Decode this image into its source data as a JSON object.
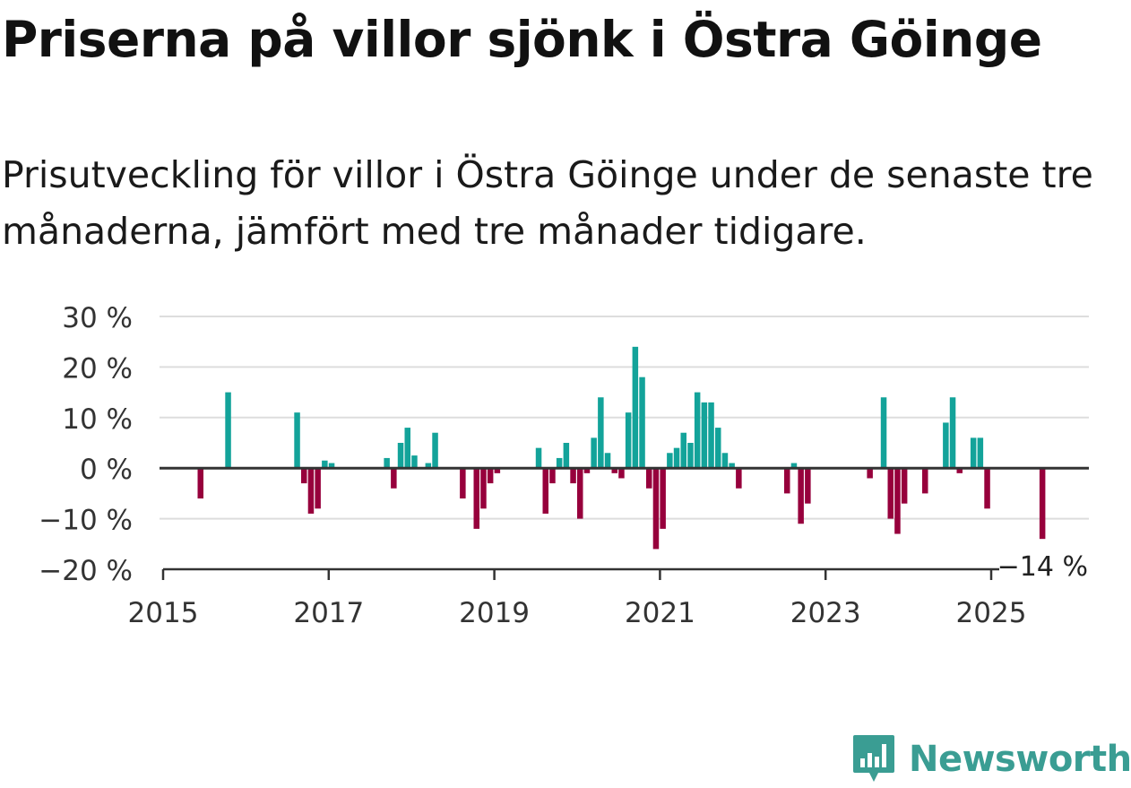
{
  "title": "Priserna på villor sjönk i Östra Göinge",
  "subtitle": "Prisutveckling för villor i Östra Göinge under de senaste tre månaderna, jämfört med tre månader tidigare.",
  "brand": "Newsworthy",
  "colors": {
    "positive": "#13a39a",
    "negative": "#97003c",
    "grid": "#dddddd",
    "axis": "#333333",
    "brand": "#3a9d93"
  },
  "chart_data": {
    "type": "bar",
    "x_unit": "month",
    "ylim": [
      -20,
      30
    ],
    "y_ticks": [
      30,
      20,
      10,
      0,
      -10,
      -20
    ],
    "y_tick_labels": [
      "30 %",
      "20 %",
      "10 %",
      "0 %",
      "−10 %",
      "−20 %"
    ],
    "x_ticks": [
      "2015",
      "2017",
      "2019",
      "2021",
      "2023",
      "2025"
    ],
    "grid": true,
    "last_value_label": "−14 %",
    "series": [
      {
        "values": [
          {
            "x": "2015-06",
            "y": -6
          },
          {
            "x": "2015-10",
            "y": 15
          },
          {
            "x": "2016-08",
            "y": 11
          },
          {
            "x": "2016-09",
            "y": -3
          },
          {
            "x": "2016-10",
            "y": -9
          },
          {
            "x": "2016-11",
            "y": -8
          },
          {
            "x": "2016-12",
            "y": 1.5
          },
          {
            "x": "2017-01",
            "y": 1
          },
          {
            "x": "2017-09",
            "y": 2
          },
          {
            "x": "2017-10",
            "y": -4
          },
          {
            "x": "2017-11",
            "y": 5
          },
          {
            "x": "2017-12",
            "y": 8
          },
          {
            "x": "2018-01",
            "y": 2.5
          },
          {
            "x": "2018-03",
            "y": 1
          },
          {
            "x": "2018-04",
            "y": 7
          },
          {
            "x": "2018-08",
            "y": -6
          },
          {
            "x": "2018-10",
            "y": -12
          },
          {
            "x": "2018-11",
            "y": -8
          },
          {
            "x": "2018-12",
            "y": -3
          },
          {
            "x": "2019-01",
            "y": -1
          },
          {
            "x": "2019-07",
            "y": 4
          },
          {
            "x": "2019-08",
            "y": -9
          },
          {
            "x": "2019-09",
            "y": -3
          },
          {
            "x": "2019-10",
            "y": 2
          },
          {
            "x": "2019-11",
            "y": 5
          },
          {
            "x": "2019-12",
            "y": -3
          },
          {
            "x": "2020-01",
            "y": -10
          },
          {
            "x": "2020-02",
            "y": -1
          },
          {
            "x": "2020-03",
            "y": 6
          },
          {
            "x": "2020-04",
            "y": 14
          },
          {
            "x": "2020-05",
            "y": 3
          },
          {
            "x": "2020-06",
            "y": -1
          },
          {
            "x": "2020-07",
            "y": -2
          },
          {
            "x": "2020-08",
            "y": 11
          },
          {
            "x": "2020-09",
            "y": 24
          },
          {
            "x": "2020-10",
            "y": 18
          },
          {
            "x": "2020-11",
            "y": -4
          },
          {
            "x": "2020-12",
            "y": -16
          },
          {
            "x": "2021-01",
            "y": -12
          },
          {
            "x": "2021-02",
            "y": 3
          },
          {
            "x": "2021-03",
            "y": 4
          },
          {
            "x": "2021-04",
            "y": 7
          },
          {
            "x": "2021-05",
            "y": 5
          },
          {
            "x": "2021-06",
            "y": 15
          },
          {
            "x": "2021-07",
            "y": 13
          },
          {
            "x": "2021-08",
            "y": 13
          },
          {
            "x": "2021-09",
            "y": 8
          },
          {
            "x": "2021-10",
            "y": 3
          },
          {
            "x": "2021-11",
            "y": 1
          },
          {
            "x": "2021-12",
            "y": -4
          },
          {
            "x": "2022-07",
            "y": -5
          },
          {
            "x": "2022-08",
            "y": 1
          },
          {
            "x": "2022-09",
            "y": -11
          },
          {
            "x": "2022-10",
            "y": -7
          },
          {
            "x": "2023-07",
            "y": -2
          },
          {
            "x": "2023-09",
            "y": 14
          },
          {
            "x": "2023-10",
            "y": -10
          },
          {
            "x": "2023-11",
            "y": -13
          },
          {
            "x": "2023-12",
            "y": -7
          },
          {
            "x": "2024-03",
            "y": -5
          },
          {
            "x": "2024-06",
            "y": 9
          },
          {
            "x": "2024-07",
            "y": 14
          },
          {
            "x": "2024-08",
            "y": -1
          },
          {
            "x": "2024-10",
            "y": 6
          },
          {
            "x": "2024-11",
            "y": 6
          },
          {
            "x": "2024-12",
            "y": -8
          },
          {
            "x": "2025-08",
            "y": -14
          }
        ]
      }
    ]
  }
}
